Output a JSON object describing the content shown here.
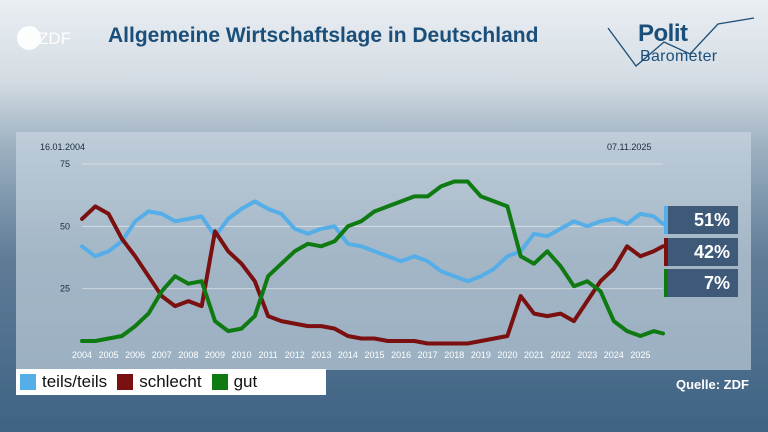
{
  "header": {
    "logo_text": "ZDF",
    "title": "Allgemeine Wirtschaftslage in Deutschland",
    "brand_line1": "Polit",
    "brand_line2": "Barometer"
  },
  "colors": {
    "teils": "#55aee8",
    "schlecht": "#7a1010",
    "gut": "#0f7a12",
    "badge_bg": "#3e5a78"
  },
  "chart_data": {
    "type": "line",
    "start_date": "16.01.2004",
    "end_date": "07.11.2025",
    "x": [
      2004.0,
      2004.5,
      2005.0,
      2005.5,
      2006.0,
      2006.5,
      2007.0,
      2007.5,
      2008.0,
      2008.5,
      2009.0,
      2009.5,
      2010.0,
      2010.5,
      2011.0,
      2011.5,
      2012.0,
      2012.5,
      2013.0,
      2013.5,
      2014.0,
      2014.5,
      2015.0,
      2015.5,
      2016.0,
      2016.5,
      2017.0,
      2017.5,
      2018.0,
      2018.5,
      2019.0,
      2019.5,
      2020.0,
      2020.5,
      2021.0,
      2021.5,
      2022.0,
      2022.5,
      2023.0,
      2023.5,
      2024.0,
      2024.5,
      2025.0,
      2025.5,
      2025.85
    ],
    "x_ticks": [
      "2004",
      "2005",
      "2006",
      "2007",
      "2008",
      "2009",
      "2010",
      "2011",
      "2012",
      "2013",
      "2014",
      "2015",
      "2016",
      "2017",
      "2018",
      "2019",
      "2020",
      "2021",
      "2022",
      "2023",
      "2024",
      "2025"
    ],
    "y_ticks": [
      "25",
      "50",
      "75"
    ],
    "ylim": [
      0,
      75
    ],
    "series": [
      {
        "name": "teils/teils",
        "values": [
          42,
          38,
          40,
          44,
          52,
          56,
          55,
          52,
          53,
          54,
          46,
          53,
          57,
          60,
          57,
          55,
          49,
          47,
          49,
          50,
          43,
          42,
          40,
          38,
          36,
          38,
          36,
          32,
          30,
          28,
          30,
          33,
          38,
          40,
          47,
          46,
          49,
          52,
          50,
          52,
          53,
          51,
          55,
          54,
          51
        ]
      },
      {
        "name": "schlecht",
        "values": [
          53,
          58,
          55,
          45,
          38,
          30,
          22,
          18,
          20,
          18,
          48,
          40,
          35,
          28,
          14,
          12,
          11,
          10,
          10,
          9,
          6,
          5,
          5,
          4,
          4,
          4,
          3,
          3,
          3,
          3,
          4,
          5,
          6,
          22,
          15,
          14,
          15,
          12,
          20,
          28,
          33,
          42,
          38,
          40,
          42
        ]
      },
      {
        "name": "gut",
        "values": [
          4,
          4,
          5,
          6,
          10,
          15,
          24,
          30,
          27,
          28,
          12,
          8,
          9,
          14,
          30,
          35,
          40,
          43,
          42,
          44,
          50,
          52,
          56,
          58,
          60,
          62,
          62,
          66,
          68,
          68,
          62,
          60,
          58,
          38,
          35,
          40,
          34,
          26,
          28,
          24,
          12,
          8,
          6,
          8,
          7
        ]
      }
    ],
    "final_labels": [
      "51%",
      "42%",
      "7%"
    ]
  },
  "legend": {
    "items": [
      {
        "label": "teils/teils",
        "color": "#55aee8"
      },
      {
        "label": "schlecht",
        "color": "#7a1010"
      },
      {
        "label": "gut",
        "color": "#0f7a12"
      }
    ]
  },
  "footer": {
    "source": "Quelle: ZDF"
  }
}
